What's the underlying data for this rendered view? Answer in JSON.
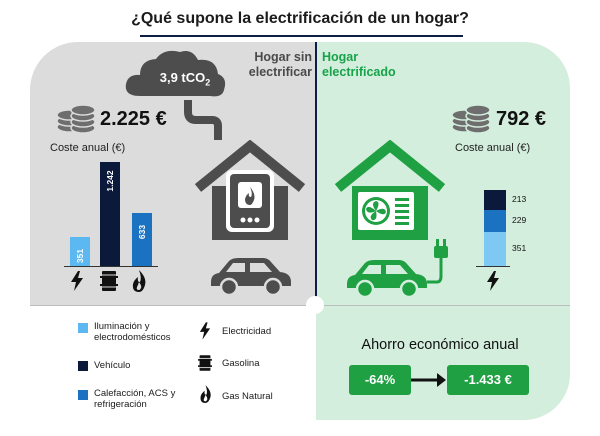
{
  "title": "¿Qué supone la electrificación de un hogar?",
  "headers": {
    "left": [
      "Hogar sin",
      "electrificar"
    ],
    "right": [
      "Hogar",
      "electrificado"
    ]
  },
  "emissions": "3,9 tCO",
  "emissions_sub": "2",
  "left": {
    "price": "2.225 €",
    "coste_label": "Coste anual (€)"
  },
  "right": {
    "price": "792 €",
    "coste_label": "Coste anual (€)"
  },
  "chart_data": [
    {
      "type": "bar",
      "categories": [
        "Electricidad",
        "Gasolina",
        "Gas Natural"
      ],
      "values": [
        351,
        1242,
        633
      ],
      "labels": [
        "351",
        "1.242",
        "633"
      ],
      "colors": [
        "#5bb8f0",
        "#0b1a3a",
        "#1a72c0"
      ]
    },
    {
      "type": "bar",
      "stacked": true,
      "categories": [
        "Electricidad"
      ],
      "series": [
        {
          "values": [
            351
          ],
          "label": "351",
          "color": "#7ec8f4"
        },
        {
          "values": [
            229
          ],
          "label": "229",
          "color": "#1a72c0"
        },
        {
          "values": [
            213
          ],
          "label": "213",
          "color": "#0b1a3a"
        }
      ]
    }
  ],
  "legend": {
    "items": [
      {
        "text": "Iluminación y electrodomésticos",
        "color": "#5bb8f0"
      },
      {
        "text": "Vehículo",
        "color": "#0b1a3a"
      },
      {
        "text": "Calefacción, ACS y refrigeración",
        "color": "#1a72c0"
      }
    ],
    "icons": [
      {
        "text": "Electricidad",
        "icon": "lightning-icon"
      },
      {
        "text": "Gasolina",
        "icon": "barrel-icon"
      },
      {
        "text": "Gas Natural",
        "icon": "flame-icon"
      }
    ]
  },
  "savings": {
    "title": "Ahorro económico anual",
    "percent": "-64%",
    "amount": "-1.433 €"
  }
}
